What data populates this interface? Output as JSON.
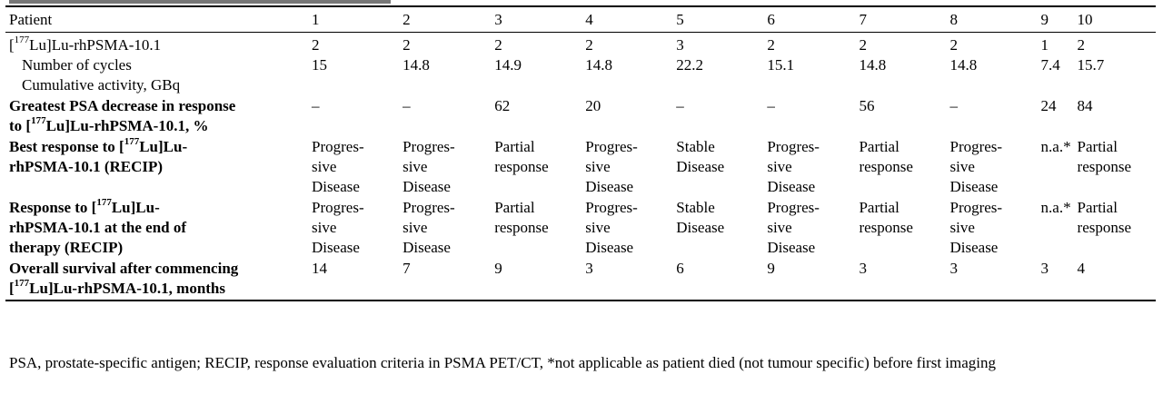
{
  "table": {
    "headers": [
      "Patient",
      "1",
      "2",
      "3",
      "4",
      "5",
      "6",
      "7",
      "8",
      "9",
      "10"
    ],
    "rows": [
      {
        "label_parts": [
          "[",
          "177",
          "Lu]Lu-rhPSMA-10.1"
        ],
        "sublabels": [
          "Number of cycles",
          "Cumulative activity, GBq"
        ],
        "cycles": [
          "2",
          "2",
          "2",
          "2",
          "3",
          "2",
          "2",
          "2",
          "1",
          "2"
        ],
        "activity": [
          "15",
          "14.8",
          "14.9",
          "14.8",
          "22.2",
          "15.1",
          "14.8",
          "14.8",
          "7.4",
          "15.7"
        ]
      },
      {
        "label_line1": "Greatest PSA decrease in response",
        "label_line2_parts": [
          "to [",
          "177",
          "Lu]Lu-rhPSMA-10.1, %"
        ],
        "values": [
          "–",
          "–",
          "62",
          "20",
          "–",
          "–",
          "56",
          "–",
          "24",
          "84"
        ]
      },
      {
        "label_line1_parts": [
          "Best response to [",
          "177",
          "Lu]Lu-"
        ],
        "label_line2": "rhPSMA-10.1 (RECIP)",
        "values": [
          [
            "Progres-",
            "sive",
            "Disease"
          ],
          [
            "Progres-",
            "sive",
            "Disease"
          ],
          [
            "Partial",
            "response"
          ],
          [
            "Progres-",
            "sive",
            "Disease"
          ],
          [
            "Stable",
            "Disease"
          ],
          [
            "Progres-",
            "sive",
            "Disease"
          ],
          [
            "Partial",
            "response"
          ],
          [
            "Progres-",
            "sive",
            "Disease"
          ],
          [
            "n.a.*"
          ],
          [
            "Partial",
            "response"
          ]
        ]
      },
      {
        "label_line1_parts": [
          "Response to [",
          "177",
          "Lu]Lu-"
        ],
        "label_line2": "rhPSMA-10.1 at the end of",
        "label_line3": "therapy (RECIP)",
        "values": [
          [
            "Progres-",
            "sive",
            "Disease"
          ],
          [
            "Progres-",
            "sive",
            "Disease"
          ],
          [
            "Partial",
            "response"
          ],
          [
            "Progres-",
            "sive",
            "Disease"
          ],
          [
            "Stable",
            "Disease"
          ],
          [
            "Progres-",
            "sive",
            "Disease"
          ],
          [
            "Partial",
            "response"
          ],
          [
            "Progres-",
            "sive",
            "Disease"
          ],
          [
            "n.a.*"
          ],
          [
            "Partial",
            "response"
          ]
        ]
      },
      {
        "label_line1": "Overall survival after commencing",
        "label_line2_parts": [
          "[",
          "177",
          "Lu]Lu-rhPSMA-10.1, months"
        ],
        "values": [
          "14",
          "7",
          "9",
          "3",
          "6",
          "9",
          "3",
          "3",
          "3",
          "4"
        ]
      }
    ]
  },
  "footnote": "PSA, prostate-specific antigen; RECIP, response evaluation criteria in PSMA PET/CT, *not applicable as patient died (not tumour specific) before first imaging"
}
